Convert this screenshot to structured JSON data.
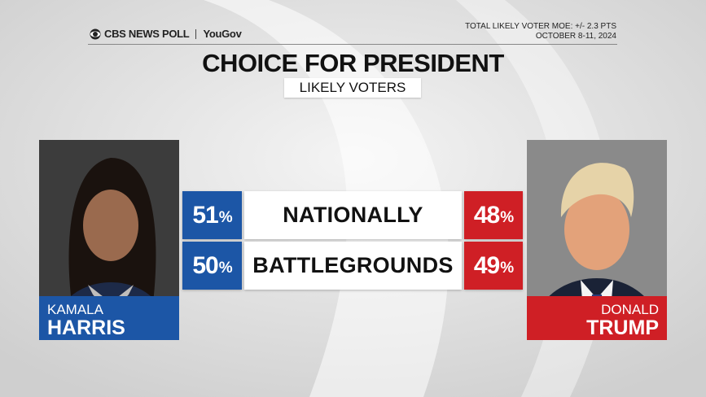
{
  "header": {
    "brand": "CBS NEWS POLL",
    "partner": "YouGov",
    "moe": "TOTAL LIKELY VOTER MOE: +/- 2.3 PTS",
    "dates": "OCTOBER 8-11, 2024"
  },
  "title": "CHOICE FOR PRESIDENT",
  "subtitle": "LIKELY VOTERS",
  "candidates": [
    {
      "first": "KAMALA",
      "last": "HARRIS"
    },
    {
      "first": "DONALD",
      "last": "TRUMP"
    }
  ],
  "rows": [
    {
      "label": "NATIONALLY",
      "harris": "51%",
      "trump": "48%"
    },
    {
      "label": "BATTLEGROUNDS",
      "harris": "50%",
      "trump": "49%"
    }
  ]
}
